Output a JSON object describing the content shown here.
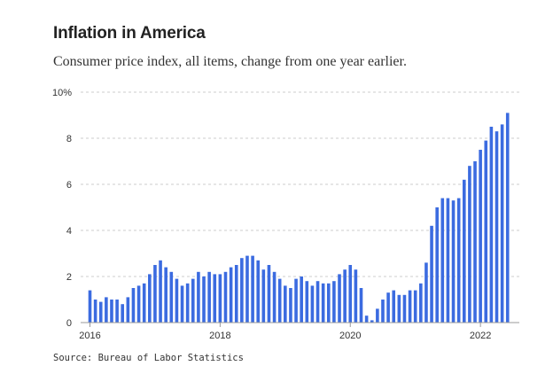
{
  "title": "Inflation in America",
  "subtitle": "Consumer price index, all items, change from one year earlier.",
  "source": "Source: Bureau of Labor Statistics",
  "colors": {
    "bar": "#3b6be0",
    "grid": "#cccccc",
    "axis": "#999999"
  },
  "chart_data": {
    "type": "bar",
    "title": "Inflation in America",
    "subtitle": "Consumer price index, all items, change from one year earlier.",
    "xlabel": "",
    "ylabel": "",
    "ylim": [
      0,
      10
    ],
    "yticks": [
      0,
      2,
      4,
      6,
      8,
      10
    ],
    "ytick_labels": [
      "0",
      "2",
      "4",
      "6",
      "8",
      "10%"
    ],
    "grid": true,
    "x_start": "2016-01",
    "x_tick_labels": [
      {
        "label": "2016",
        "month": "2016-01"
      },
      {
        "label": "2018",
        "month": "2018-01"
      },
      {
        "label": "2020",
        "month": "2020-01"
      },
      {
        "label": "2022",
        "month": "2022-01"
      }
    ],
    "values": [
      1.4,
      1.0,
      0.9,
      1.1,
      1.0,
      1.0,
      0.8,
      1.1,
      1.5,
      1.6,
      1.7,
      2.1,
      2.5,
      2.7,
      2.4,
      2.2,
      1.9,
      1.6,
      1.7,
      1.9,
      2.2,
      2.0,
      2.2,
      2.1,
      2.1,
      2.2,
      2.4,
      2.5,
      2.8,
      2.9,
      2.9,
      2.7,
      2.3,
      2.5,
      2.2,
      1.9,
      1.6,
      1.5,
      1.9,
      2.0,
      1.8,
      1.6,
      1.8,
      1.7,
      1.7,
      1.8,
      2.1,
      2.3,
      2.5,
      2.3,
      1.5,
      0.3,
      0.1,
      0.6,
      1.0,
      1.3,
      1.4,
      1.2,
      1.2,
      1.4,
      1.4,
      1.7,
      2.6,
      4.2,
      5.0,
      5.4,
      5.4,
      5.3,
      5.4,
      6.2,
      6.8,
      7.0,
      7.5,
      7.9,
      8.5,
      8.3,
      8.6,
      9.1
    ]
  }
}
